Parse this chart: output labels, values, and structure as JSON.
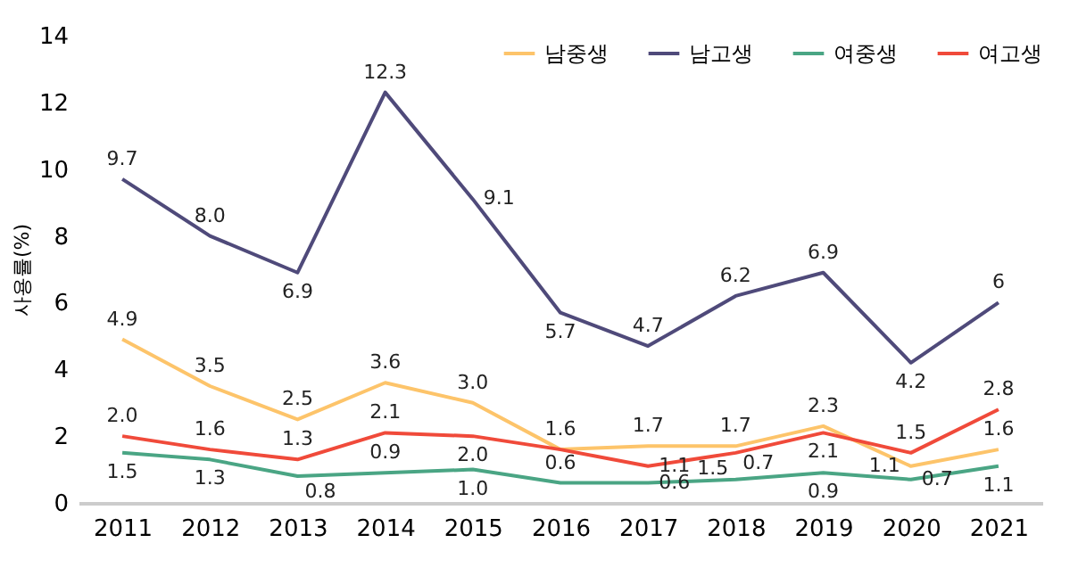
{
  "chart_data": {
    "type": "line",
    "ylabel": "사용률(%)",
    "categories": [
      "2011",
      "2012",
      "2013",
      "2014",
      "2015",
      "2016",
      "2017",
      "2018",
      "2019",
      "2020",
      "2021"
    ],
    "series": [
      {
        "name": "남중생",
        "color": "#fdc46a",
        "values": [
          4.9,
          3.5,
          2.5,
          3.6,
          3.0,
          1.6,
          1.7,
          1.7,
          2.3,
          1.1,
          1.6
        ],
        "value_labels": [
          "4.9",
          "3.5",
          "2.5",
          "3.6",
          "3.0",
          null,
          "1.7",
          "1.7",
          "2.3",
          "1.1",
          "1.6"
        ]
      },
      {
        "name": "남고생",
        "color": "#4f4a7a",
        "values": [
          9.7,
          8.0,
          6.9,
          12.3,
          9.1,
          5.7,
          4.7,
          6.2,
          6.9,
          4.2,
          6
        ],
        "value_labels": [
          "9.7",
          "8.0",
          "6.9",
          "12.3",
          "9.1",
          "5.7",
          "4.7",
          "6.2",
          "6.9",
          "4.2",
          "6"
        ]
      },
      {
        "name": "여중생",
        "color": "#4aa584",
        "values": [
          1.5,
          1.3,
          0.8,
          0.9,
          1.0,
          0.6,
          0.6,
          0.7,
          0.9,
          0.7,
          1.1
        ],
        "value_labels": [
          "1.5",
          "1.3",
          "0.8",
          "0.9",
          "1.0",
          "0.6",
          "0.6",
          "0.7",
          "0.9",
          "0.7",
          "1.1"
        ]
      },
      {
        "name": "여고생",
        "color": "#f04a3a",
        "values": [
          2.0,
          1.6,
          1.3,
          2.1,
          2.0,
          1.6,
          1.1,
          1.5,
          2.1,
          1.5,
          2.8
        ],
        "value_labels": [
          "2.0",
          "1.6",
          "1.3",
          "2.1",
          "2.0",
          "1.6",
          "1.1",
          "1.5",
          "2.1",
          "1.5",
          "2.8"
        ]
      }
    ],
    "ylim": [
      0,
      14
    ],
    "yticks": [
      0,
      2,
      4,
      6,
      8,
      10,
      12,
      14
    ],
    "grid": false,
    "legend": "top right",
    "marker": "none",
    "line_style": "solid"
  }
}
